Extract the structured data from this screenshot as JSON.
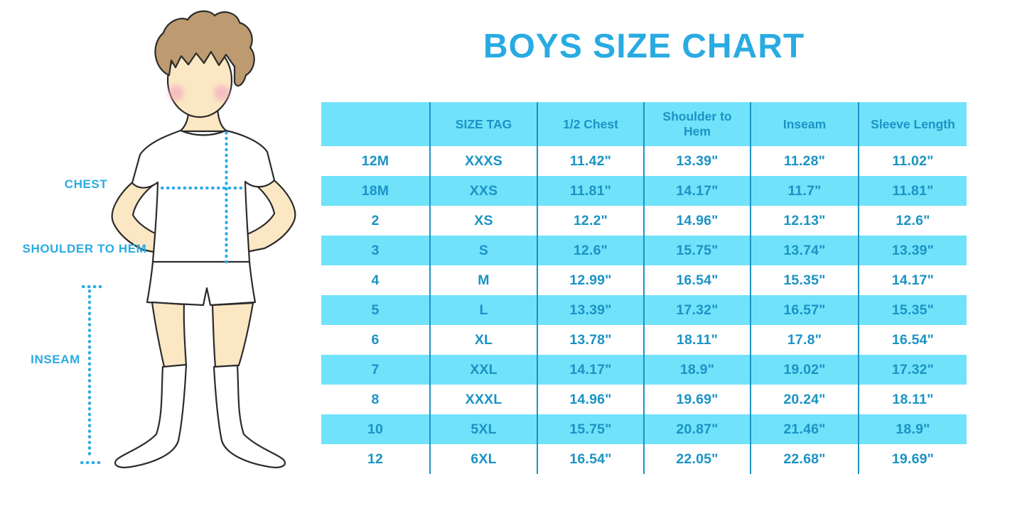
{
  "title": "BOYS SIZE CHART",
  "figure": {
    "labels": {
      "chest": "CHEST",
      "shoulder_to_hem": "SHOULDER TO HEM",
      "inseam": "INSEAM"
    }
  },
  "chart_data": {
    "type": "table",
    "columns": [
      "",
      "SIZE TAG",
      "1/2 Chest",
      "Shoulder to Hem",
      "Inseam",
      "Sleeve Length"
    ],
    "rows": [
      [
        "12M",
        "XXXS",
        "11.42\"",
        "13.39\"",
        "11.28\"",
        "11.02\""
      ],
      [
        "18M",
        "XXS",
        "11.81\"",
        "14.17\"",
        "11.7\"",
        "11.81\""
      ],
      [
        "2",
        "XS",
        "12.2\"",
        "14.96\"",
        "12.13\"",
        "12.6\""
      ],
      [
        "3",
        "S",
        "12.6\"",
        "15.75\"",
        "13.74\"",
        "13.39\""
      ],
      [
        "4",
        "M",
        "12.99\"",
        "16.54\"",
        "15.35\"",
        "14.17\""
      ],
      [
        "5",
        "L",
        "13.39\"",
        "17.32\"",
        "16.57\"",
        "15.35\""
      ],
      [
        "6",
        "XL",
        "13.78\"",
        "18.11\"",
        "17.8\"",
        "16.54\""
      ],
      [
        "7",
        "XXL",
        "14.17\"",
        "18.9\"",
        "19.02\"",
        "17.32\""
      ],
      [
        "8",
        "XXXL",
        "14.96\"",
        "19.69\"",
        "20.24\"",
        "18.11\""
      ],
      [
        "10",
        "5XL",
        "15.75\"",
        "20.87\"",
        "21.46\"",
        "18.9\""
      ],
      [
        "12",
        "6XL",
        "16.54\"",
        "22.05\"",
        "22.68\"",
        "19.69\""
      ]
    ]
  },
  "colors": {
    "accent_blue": "#29ABE2",
    "table_text_blue": "#1B93C5",
    "row_cyan": "#70E2FA",
    "skin": "#FBE7C3",
    "hair": "#BD9A70",
    "cheek": "#F2A9BE"
  }
}
